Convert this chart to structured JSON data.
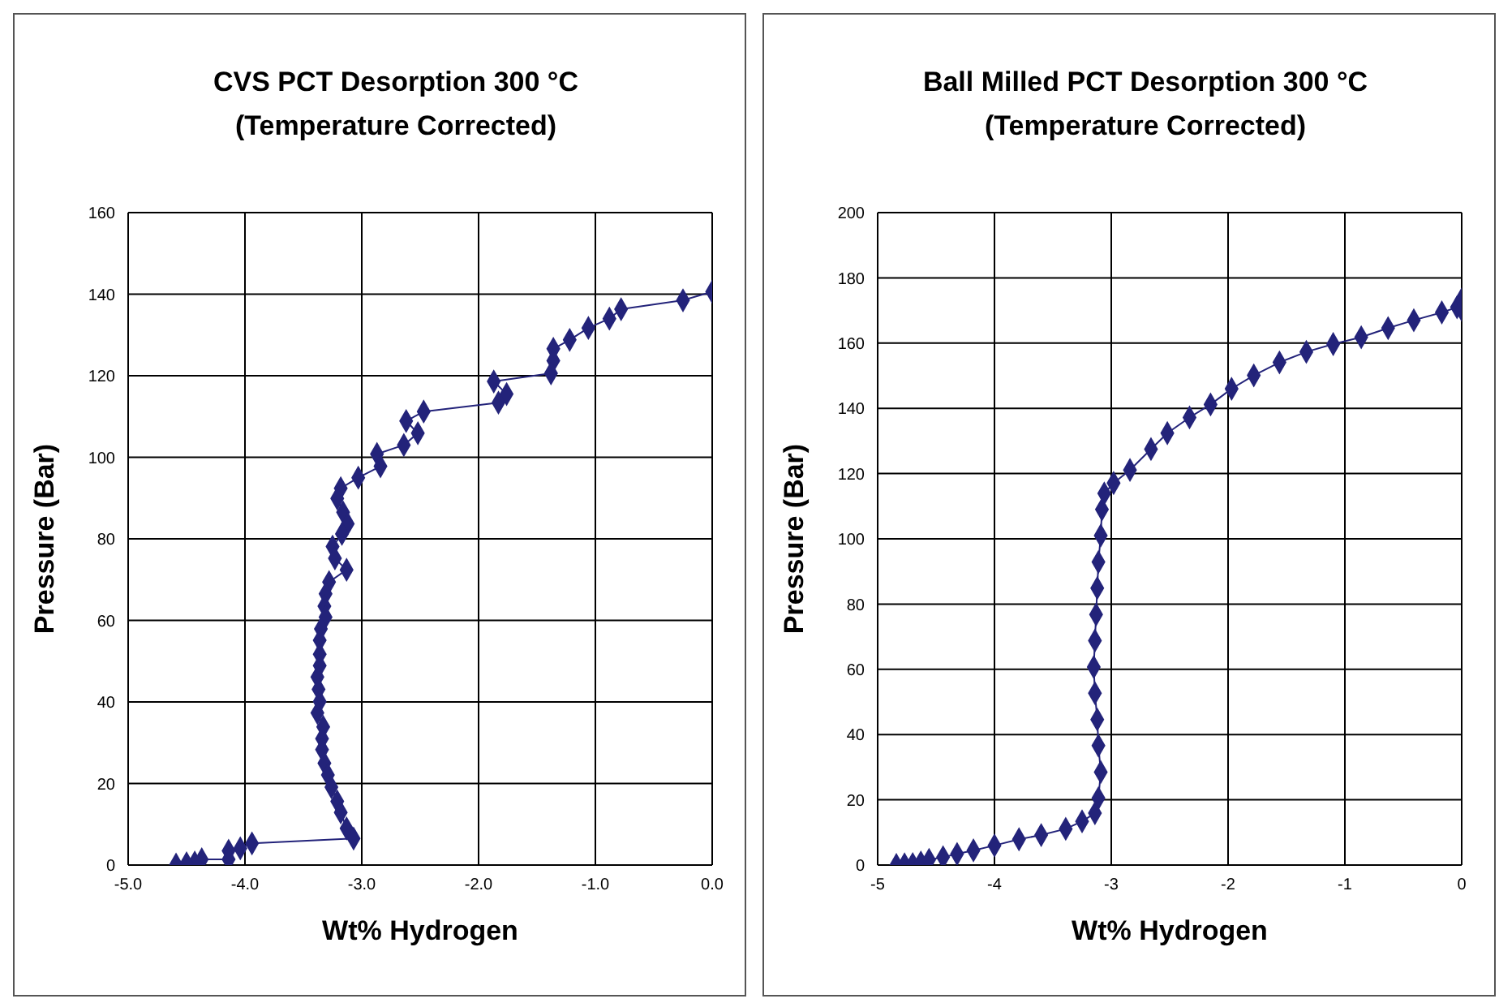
{
  "chart_data": [
    {
      "type": "line",
      "title": "CVS PCT Desorption 300 °C\n(Temperature Corrected)",
      "xlabel": "Wt% Hydrogen",
      "ylabel": "Pressure (Bar)",
      "xlim": [
        -5,
        0
      ],
      "xticks": [
        {
          "value": -5,
          "label": "-5.0"
        },
        {
          "value": -4,
          "label": "-4.0"
        },
        {
          "value": -3,
          "label": "-3.0"
        },
        {
          "value": -2,
          "label": "-2.0"
        },
        {
          "value": -1,
          "label": "-1.0"
        },
        {
          "value": 0,
          "label": "0.0"
        }
      ],
      "ylim": [
        0,
        160
      ],
      "yticks": [
        0,
        20,
        40,
        60,
        80,
        100,
        120,
        140,
        160
      ],
      "grid": true,
      "legend": false,
      "marker": "diamond",
      "line_style": "solid",
      "series": [
        {
          "color": "#23237a",
          "x": [
            0,
            -0.25,
            -0.78,
            -0.88,
            -1.06,
            -1.22,
            -1.36,
            -1.36,
            -1.38,
            -1.87,
            -1.76,
            -1.83,
            -2.47,
            -2.62,
            -2.52,
            -2.64,
            -2.87,
            -2.84,
            -3.03,
            -3.18,
            -3.21,
            -3.16,
            -3.12,
            -3.17,
            -3.25,
            -3.23,
            -3.13,
            -3.28,
            -3.31,
            -3.32,
            -3.31,
            -3.35,
            -3.36,
            -3.36,
            -3.36,
            -3.38,
            -3.37,
            -3.36,
            -3.38,
            -3.33,
            -3.34,
            -3.34,
            -3.32,
            -3.29,
            -3.26,
            -3.21,
            -3.18,
            -3.13,
            -3.07,
            -3.94,
            -4.04,
            -4.14,
            -4.14,
            -4.37,
            -4.43,
            -4.5,
            -4.59
          ],
          "values": [
            140.6,
            138.5,
            136.3,
            134,
            131.7,
            128.8,
            126.6,
            123.7,
            120.6,
            118.6,
            115.5,
            113.4,
            111.2,
            108.9,
            105.9,
            103,
            100.8,
            97.8,
            95,
            92.4,
            89.9,
            86.5,
            83.7,
            81.2,
            78.1,
            75.2,
            72.4,
            69.4,
            66.5,
            63.5,
            60.8,
            57.9,
            55.1,
            51.7,
            48.9,
            46.1,
            43.1,
            40.1,
            37.3,
            33.9,
            31,
            28.3,
            25,
            22.1,
            19.1,
            15.6,
            12.9,
            9,
            6.5,
            5.3,
            4.1,
            3.5,
            1.4,
            1.4,
            0.6,
            0.4,
            0.1
          ]
        }
      ]
    },
    {
      "type": "line",
      "title": "Ball Milled PCT Desorption 300 °C\n(Temperature Corrected)",
      "xlabel": "Wt% Hydrogen",
      "ylabel": "Pressure (Bar)",
      "xlim": [
        -5,
        0
      ],
      "xticks": [
        -5,
        -4,
        -3,
        -2,
        -1,
        0
      ],
      "ylim": [
        0,
        200
      ],
      "yticks": [
        0,
        20,
        40,
        60,
        80,
        100,
        120,
        140,
        160,
        180,
        200
      ],
      "grid": true,
      "legend": false,
      "marker": "diamond",
      "line_style": "solid",
      "series": [
        {
          "color": "#23237a",
          "x": [
            -4.84,
            -4.77,
            -4.7,
            -4.63,
            -4.56,
            -4.44,
            -4.32,
            -4.18,
            -4,
            -3.79,
            -3.6,
            -3.39,
            -3.25,
            -3.14,
            -3.11,
            -3.09,
            -3.11,
            -3.12,
            -3.14,
            -3.15,
            -3.14,
            -3.13,
            -3.12,
            -3.11,
            -3.09,
            -3.08,
            -3.06,
            -2.98,
            -2.84,
            -2.66,
            -2.52,
            -2.33,
            -2.15,
            -1.97,
            -1.78,
            -1.56,
            -1.33,
            -1.1,
            -0.86,
            -0.63,
            -0.41,
            -0.17,
            -0.04,
            0,
            0
          ],
          "values": [
            0,
            0.2,
            0.3,
            0.8,
            1.6,
            2.4,
            3.4,
            4.5,
            6,
            7.9,
            9.2,
            11.1,
            13.4,
            15.9,
            20.5,
            28.5,
            36.6,
            44.6,
            52.7,
            60.7,
            68.8,
            76.8,
            84.9,
            92.9,
            101,
            109,
            113.9,
            117.1,
            121.1,
            127.5,
            132.4,
            137.2,
            141.2,
            146,
            150.1,
            154.1,
            157.3,
            159.7,
            161.8,
            164.6,
            167,
            169.4,
            171,
            173.4,
            170.2
          ]
        }
      ]
    }
  ]
}
